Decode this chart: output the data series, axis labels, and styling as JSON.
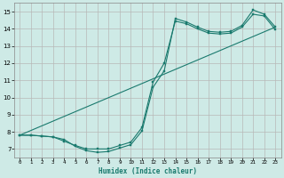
{
  "xlabel": "Humidex (Indice chaleur)",
  "bg_color": "#ceeae6",
  "line_color": "#1a7a6e",
  "grid_color": "#b8b8b8",
  "xlim": [
    -0.5,
    23.5
  ],
  "ylim": [
    6.5,
    15.5
  ],
  "xticks": [
    0,
    1,
    2,
    3,
    4,
    5,
    6,
    7,
    8,
    9,
    10,
    11,
    12,
    13,
    14,
    15,
    16,
    17,
    18,
    19,
    20,
    21,
    22,
    23
  ],
  "yticks": [
    7,
    8,
    9,
    10,
    11,
    12,
    13,
    14,
    15
  ],
  "line1_x": [
    0,
    1,
    2,
    3,
    4,
    5,
    6,
    7,
    8,
    9,
    10,
    11,
    12,
    13,
    14,
    15,
    16,
    17,
    18,
    19,
    20,
    21,
    22,
    23
  ],
  "line1_y": [
    7.8,
    7.8,
    7.75,
    7.7,
    7.55,
    7.15,
    6.9,
    6.8,
    6.85,
    7.05,
    7.25,
    8.05,
    10.6,
    11.55,
    14.6,
    14.4,
    14.1,
    13.85,
    13.8,
    13.85,
    14.2,
    15.1,
    14.85,
    14.1
  ],
  "line2_x": [
    0,
    1,
    2,
    3,
    4,
    5,
    6,
    7,
    8,
    9,
    10,
    11,
    12,
    13,
    14,
    15,
    16,
    17,
    18,
    19,
    20,
    21,
    22,
    23
  ],
  "line2_y": [
    7.8,
    7.8,
    7.75,
    7.7,
    7.45,
    7.2,
    7.0,
    7.0,
    7.0,
    7.2,
    7.4,
    8.25,
    10.9,
    12.0,
    14.45,
    14.3,
    14.0,
    13.75,
    13.7,
    13.75,
    14.1,
    14.85,
    14.75,
    13.95
  ],
  "line3_x": [
    0,
    23
  ],
  "line3_y": [
    7.8,
    14.1
  ]
}
